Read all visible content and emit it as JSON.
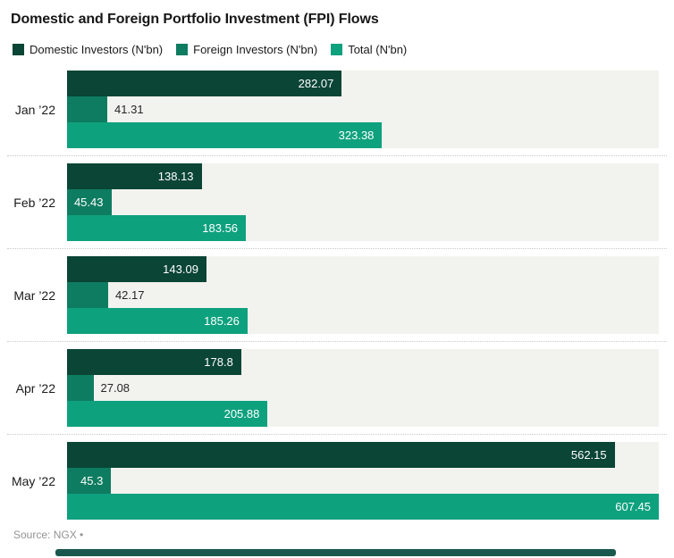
{
  "title": "Domestic and Foreign Portfolio Investment (FPI) Flows",
  "source": "Source: NGX •",
  "legend": [
    {
      "label": "Domestic Investors (N'bn)",
      "color": "#0a4535"
    },
    {
      "label": "Foreign Investors (N'bn)",
      "color": "#0e7c60"
    },
    {
      "label": "Total (N'bn)",
      "color": "#0ea17e"
    }
  ],
  "colors": {
    "track_background": "#f2f2ef",
    "separator": "#c9c9c9",
    "inside_label": "#ffffff",
    "outside_label": "#262626",
    "scrollbar": "#1a584e"
  },
  "chart_data": {
    "type": "bar",
    "orientation": "horizontal",
    "title": "Domestic and Foreign Portfolio Investment (FPI) Flows",
    "xlabel": "",
    "ylabel": "",
    "xlim": [
      0,
      607.45
    ],
    "grid": false,
    "legend_position": "top",
    "categories": [
      "Jan ’22",
      "Feb ’22",
      "Mar ’22",
      "Apr ’22",
      "May ’22"
    ],
    "series": [
      {
        "name": "Domestic Investors (N'bn)",
        "color": "#0a4535",
        "values": [
          282.07,
          138.13,
          143.09,
          178.8,
          562.15
        ],
        "labels": [
          "282.07",
          "138.13",
          "143.09",
          "178.8",
          "562.15"
        ]
      },
      {
        "name": "Foreign Investors (N'bn)",
        "color": "#0e7c60",
        "values": [
          41.31,
          45.43,
          42.17,
          27.08,
          45.3
        ],
        "labels": [
          "41.31",
          "45.43",
          "42.17",
          "27.08",
          "45.3"
        ]
      },
      {
        "name": "Total (N'bn)",
        "color": "#0ea17e",
        "values": [
          323.38,
          183.56,
          185.26,
          205.88,
          607.45
        ],
        "labels": [
          "323.38",
          "183.56",
          "185.26",
          "205.88",
          "607.45"
        ]
      }
    ],
    "label_placement": [
      [
        "inside",
        "outside",
        "inside"
      ],
      [
        "inside",
        "inside",
        "inside"
      ],
      [
        "inside",
        "outside",
        "inside"
      ],
      [
        "inside",
        "outside",
        "inside"
      ],
      [
        "inside",
        "inside",
        "inside"
      ]
    ]
  }
}
